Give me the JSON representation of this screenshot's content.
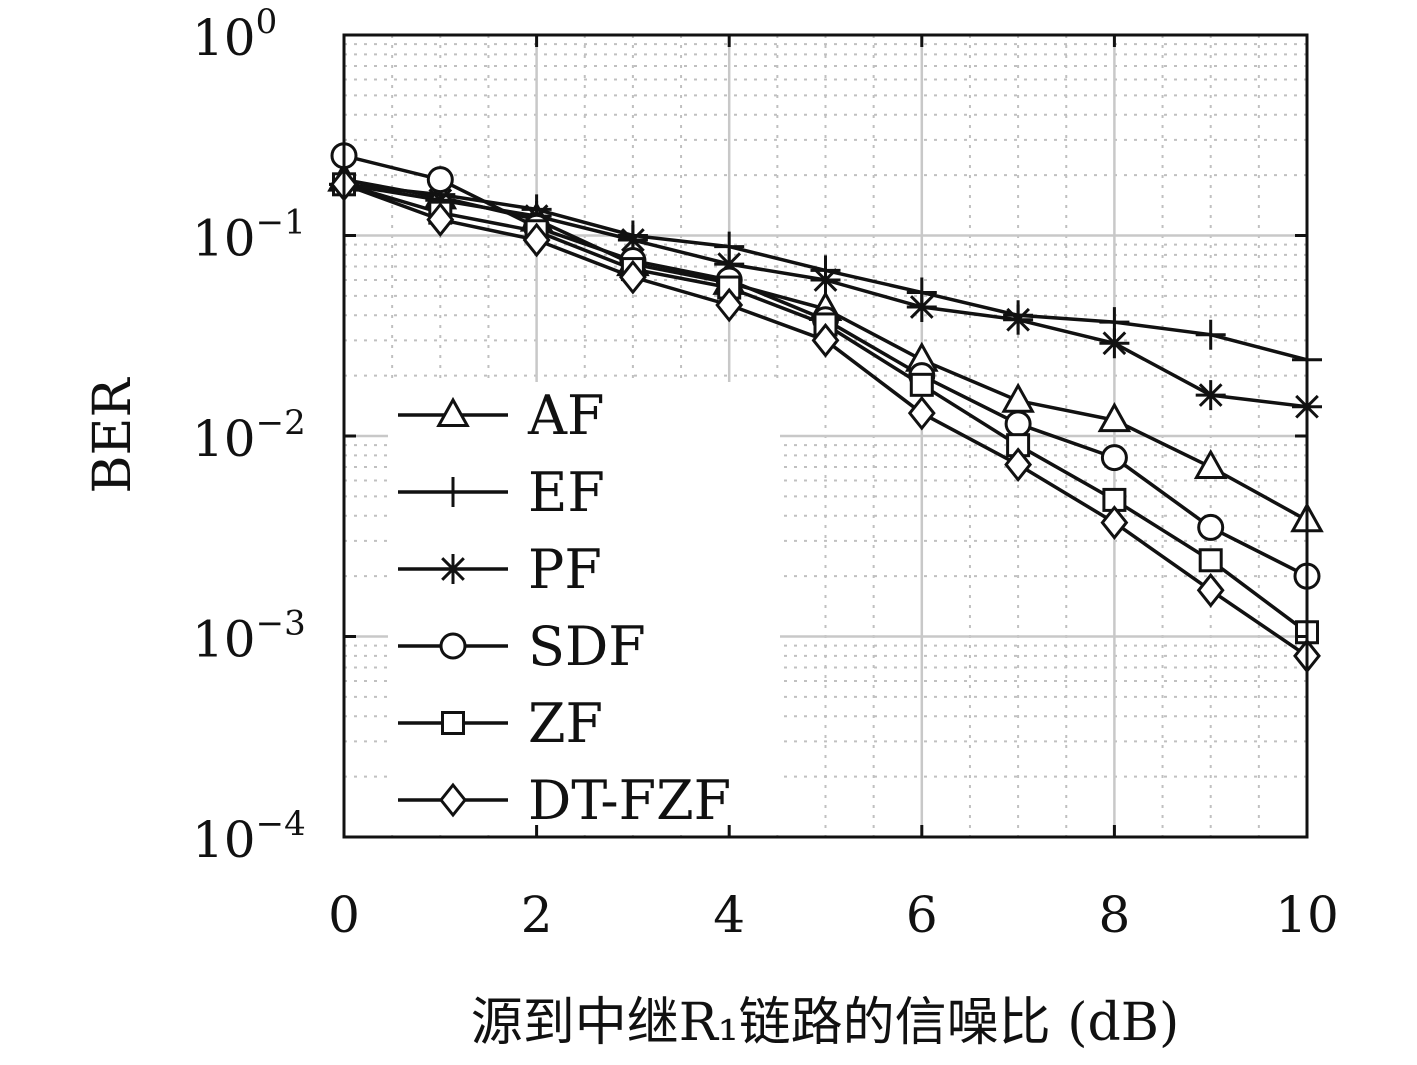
{
  "chart_data": {
    "type": "line",
    "title": "",
    "xlabel": "源到中继R₁链路的信噪比 (dB)",
    "ylabel": "BER",
    "xlim": [
      0,
      10
    ],
    "ylim": [
      0.0001,
      1
    ],
    "yscale": "log",
    "grid": true,
    "minor_grid": true,
    "legend_position": "lower-left",
    "x_ticks": [
      0,
      2,
      4,
      6,
      8,
      10
    ],
    "y_ticks": [
      {
        "value": 1,
        "base": "10",
        "exp": "0"
      },
      {
        "value": 0.1,
        "base": "10",
        "exp": "−1"
      },
      {
        "value": 0.01,
        "base": "10",
        "exp": "−2"
      },
      {
        "value": 0.001,
        "base": "10",
        "exp": "−3"
      },
      {
        "value": 0.0001,
        "base": "10",
        "exp": "−4"
      }
    ],
    "x": [
      0,
      1,
      2,
      3,
      4,
      5,
      6,
      7,
      8,
      9,
      10
    ],
    "series": [
      {
        "name": "AF",
        "marker": "triangle",
        "values": [
          0.19,
          0.155,
          0.12,
          0.072,
          0.058,
          0.043,
          0.024,
          0.015,
          0.012,
          0.007,
          0.0038
        ]
      },
      {
        "name": "EF",
        "marker": "plus",
        "values": [
          0.18,
          0.16,
          0.135,
          0.1,
          0.088,
          0.067,
          0.052,
          0.04,
          0.037,
          0.032,
          0.024
        ]
      },
      {
        "name": "PF",
        "marker": "star",
        "values": [
          0.18,
          0.15,
          0.125,
          0.095,
          0.072,
          0.06,
          0.044,
          0.038,
          0.029,
          0.016,
          0.014
        ]
      },
      {
        "name": "SDF",
        "marker": "circle",
        "values": [
          0.25,
          0.19,
          0.11,
          0.075,
          0.06,
          0.038,
          0.02,
          0.0115,
          0.0078,
          0.0035,
          0.002
        ]
      },
      {
        "name": "ZF",
        "marker": "square",
        "values": [
          0.18,
          0.13,
          0.105,
          0.068,
          0.055,
          0.036,
          0.018,
          0.009,
          0.0048,
          0.0024,
          0.00105
        ]
      },
      {
        "name": "DT-FZF",
        "marker": "diamond",
        "values": [
          0.18,
          0.12,
          0.095,
          0.062,
          0.045,
          0.03,
          0.013,
          0.0072,
          0.0037,
          0.0017,
          0.0008
        ]
      }
    ]
  },
  "colors": {
    "line": "#111111",
    "grid_major": "#c8c8c8",
    "grid_minor": "#c0c0c0",
    "background": "#ffffff"
  }
}
